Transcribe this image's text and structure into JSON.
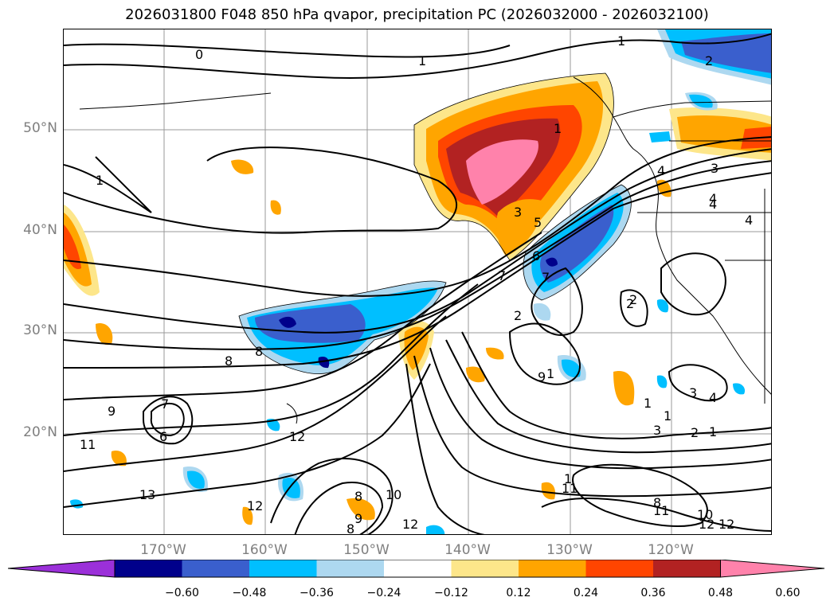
{
  "title": "2026031800 F048 850 hPa qvapor, precipitation PC (2026032000 - 2026032100)",
  "map": {
    "lat_ticks": [
      "20°N",
      "30°N",
      "40°N",
      "50°N"
    ],
    "lon_ticks": [
      "170°W",
      "160°W",
      "150°W",
      "140°W",
      "130°W",
      "120°W"
    ],
    "grid": true,
    "contour_labels": [
      "0",
      "1",
      "1",
      "1",
      "1",
      "2",
      "3",
      "3",
      "4",
      "4",
      "4",
      "5",
      "6",
      "7",
      "8",
      "8",
      "9",
      "2",
      "7",
      "1",
      "2",
      "2",
      "3",
      "4",
      "1",
      "1",
      "2",
      "1",
      "3",
      "1",
      "6",
      "7",
      "8",
      "9",
      "10",
      "11",
      "13",
      "12",
      "12",
      "11",
      "8",
      "12",
      "11",
      "12",
      "10",
      "12",
      "8",
      "9",
      "4"
    ]
  },
  "colorbar": {
    "ticks": [
      "−0.60",
      "−0.48",
      "−0.36",
      "−0.24",
      "−0.12",
      "0.12",
      "0.24",
      "0.36",
      "0.48",
      "0.60"
    ],
    "colors": [
      "#9b30d9",
      "#00008b",
      "#3a5fcd",
      "#00bfff",
      "#add8f0",
      "#ffffff",
      "#fde68a",
      "#ffa500",
      "#ff4500",
      "#b22222",
      "#ff82ab"
    ]
  }
}
